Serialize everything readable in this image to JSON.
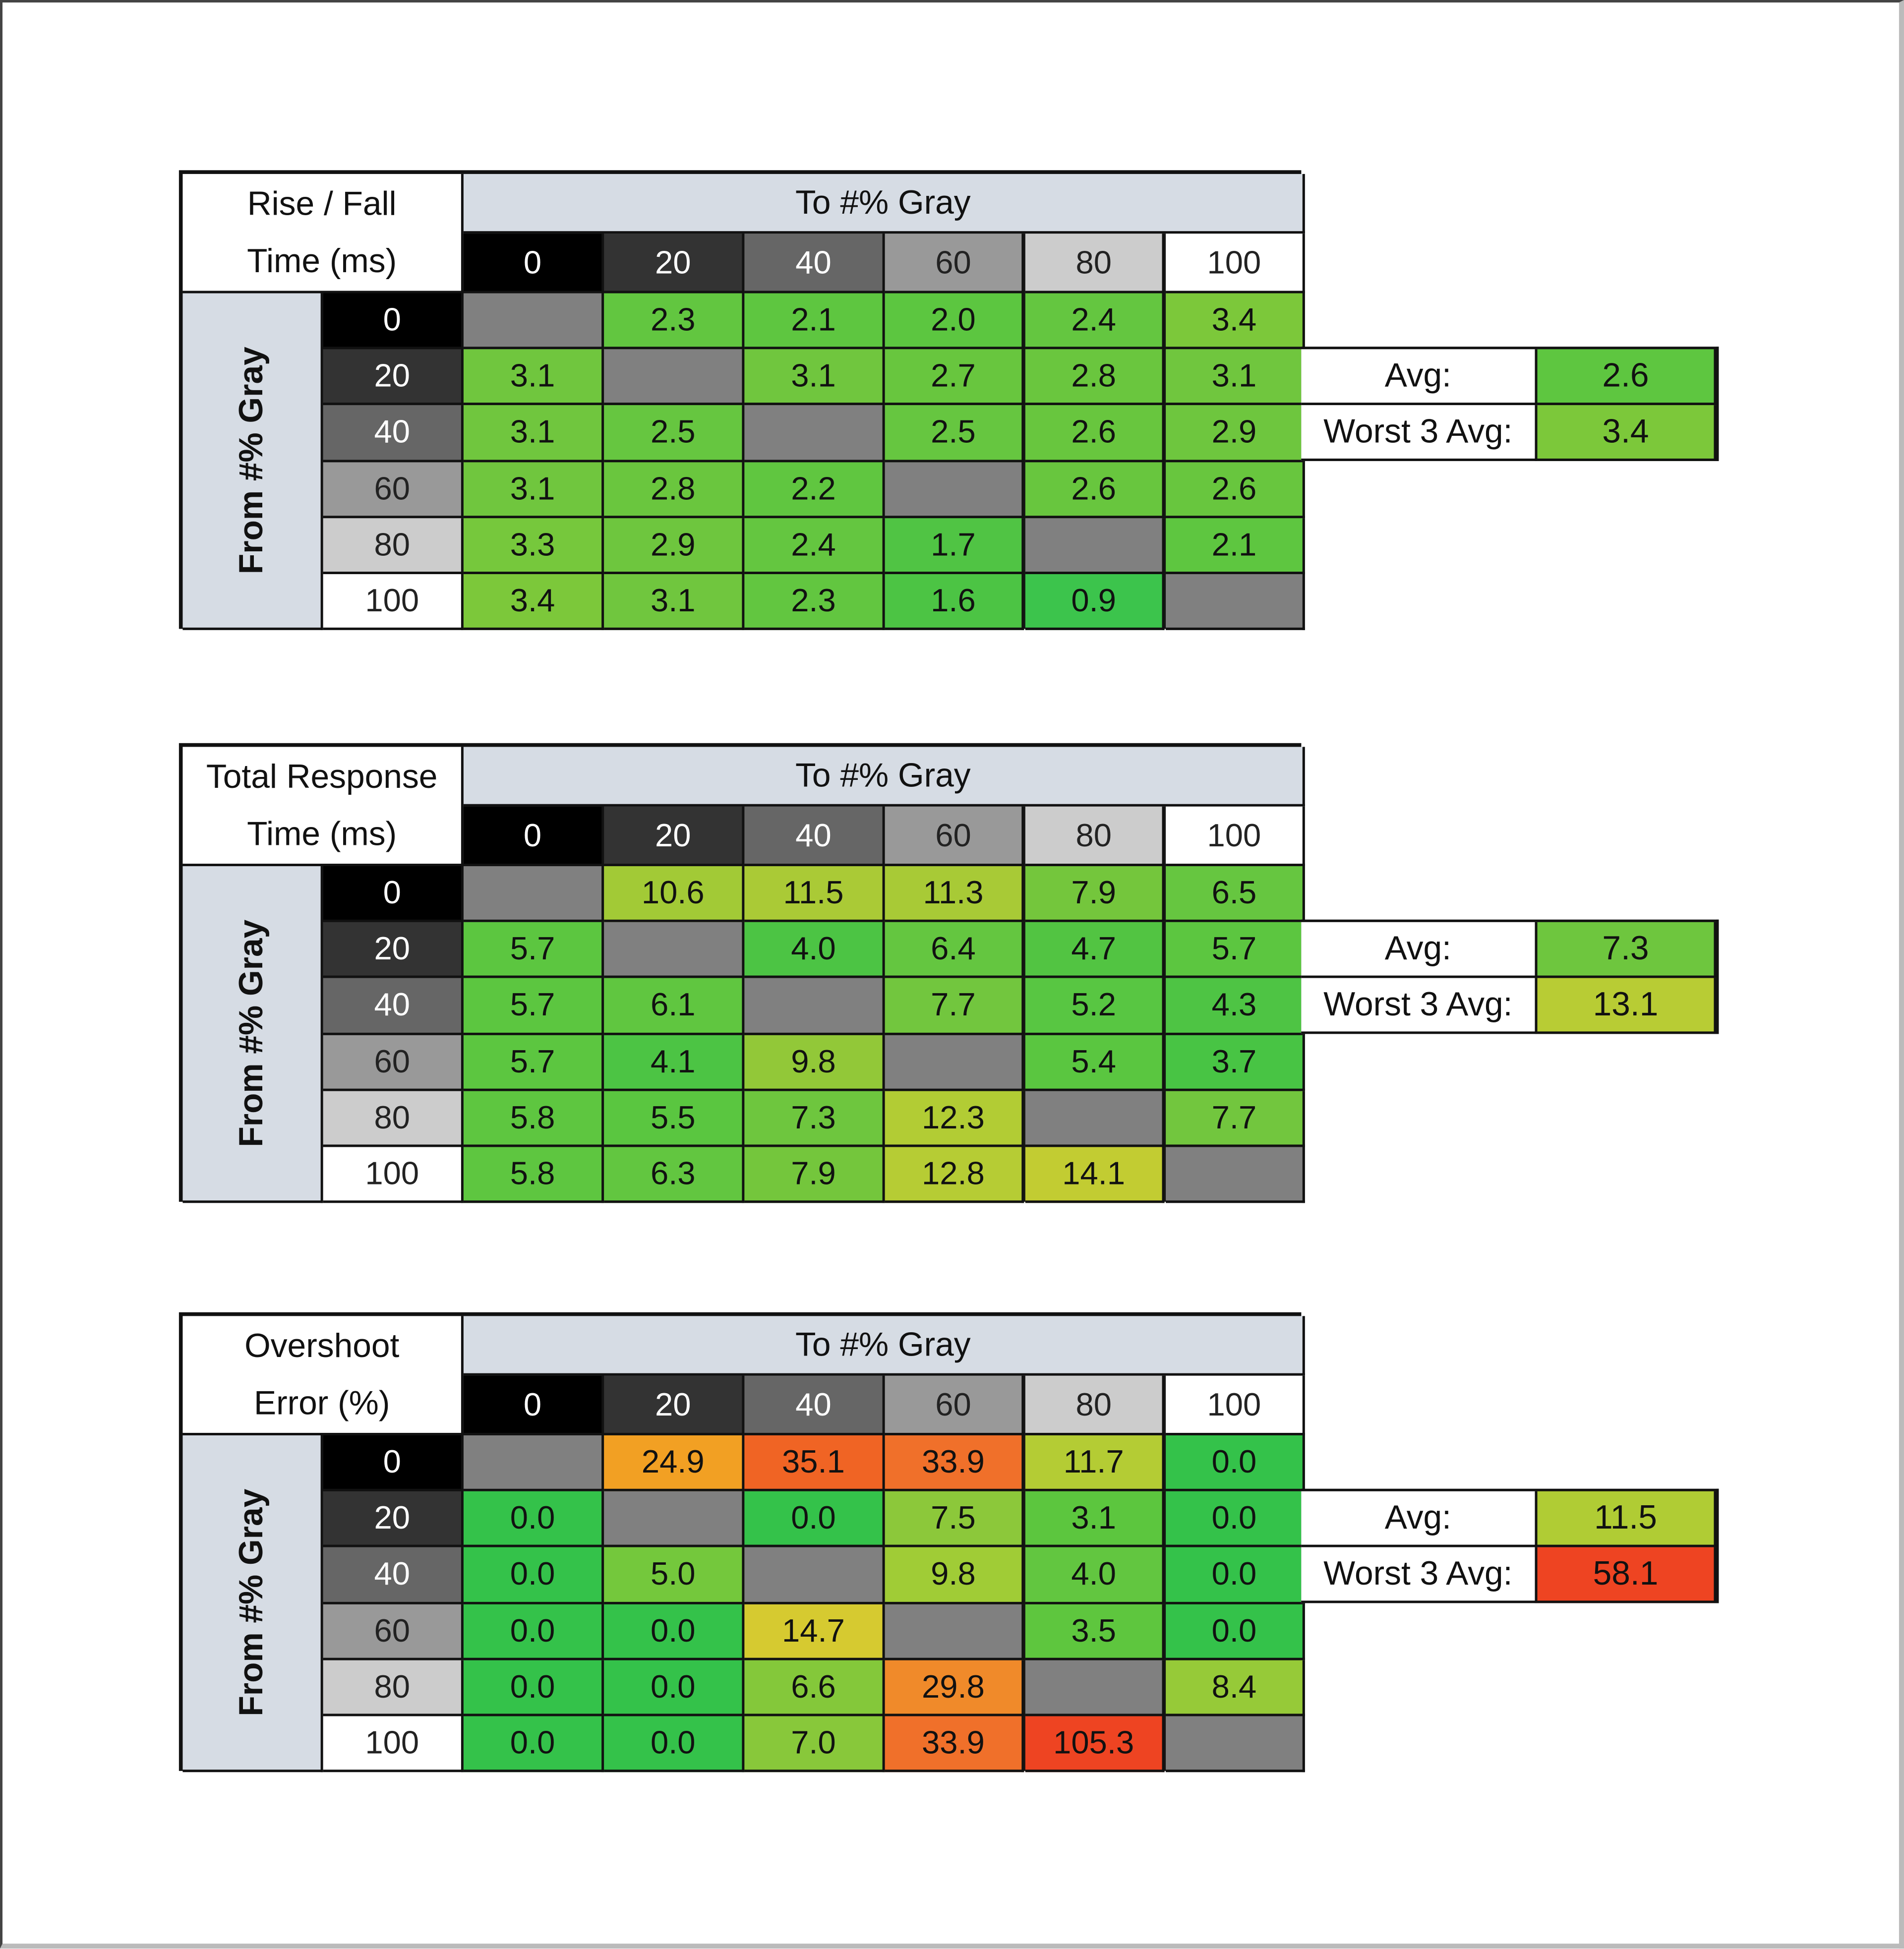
{
  "gray_levels": [
    "0",
    "20",
    "40",
    "60",
    "80",
    "100"
  ],
  "level_colors": {
    "bg": [
      "#000000",
      "#333333",
      "#666666",
      "#999999",
      "#cccccc",
      "#ffffff"
    ],
    "fg": [
      "#ffffff",
      "#ffffff",
      "#ffffff",
      "#222222",
      "#222222",
      "#222222"
    ]
  },
  "empty_color": "#808080",
  "header_band_color": "#d6dce4",
  "to_label": "To #% Gray",
  "from_label": "From #% Gray",
  "avg_label": "Avg:",
  "worst_label": "Worst 3 Avg:",
  "chart_data": [
    {
      "type": "table",
      "title": [
        "Rise / Fall",
        "Time (ms)"
      ],
      "rows": [
        [
          null,
          "2.3",
          "2.1",
          "2.0",
          "2.4",
          "3.4"
        ],
        [
          "3.1",
          null,
          "3.1",
          "2.7",
          "2.8",
          "3.1"
        ],
        [
          "3.1",
          "2.5",
          null,
          "2.5",
          "2.6",
          "2.9"
        ],
        [
          "3.1",
          "2.8",
          "2.2",
          null,
          "2.6",
          "2.6"
        ],
        [
          "3.3",
          "2.9",
          "2.4",
          "1.7",
          null,
          "2.1"
        ],
        [
          "3.4",
          "3.1",
          "2.3",
          "1.6",
          "0.9",
          null
        ]
      ],
      "colors": [
        [
          null,
          "#62c640",
          "#5ec640",
          "#5cc640",
          "#64c640",
          "#7cc83a"
        ],
        [
          "#70c63e",
          null,
          "#70c63e",
          "#68c63e",
          "#6ac63e",
          "#70c63e"
        ],
        [
          "#70c63e",
          "#66c640",
          null,
          "#66c640",
          "#68c63e",
          "#6ec63e"
        ],
        [
          "#70c63e",
          "#6ac63e",
          "#60c640",
          null,
          "#68c63e",
          "#68c63e"
        ],
        [
          "#76c83c",
          "#6ec63e",
          "#64c640",
          "#50c444",
          null,
          "#5ec640"
        ],
        [
          "#7cc83a",
          "#70c63e",
          "#62c640",
          "#4cc444",
          "#3cc44c",
          null
        ]
      ],
      "avg": "2.6",
      "avg_color": "#5ec640",
      "worst3_avg": "3.4",
      "worst3_color": "#7cc83a"
    },
    {
      "type": "table",
      "title": [
        "Total Response",
        "Time (ms)"
      ],
      "rows": [
        [
          null,
          "10.6",
          "11.5",
          "11.3",
          "7.9",
          "6.5"
        ],
        [
          "5.7",
          null,
          "4.0",
          "6.4",
          "4.7",
          "5.7"
        ],
        [
          "5.7",
          "6.1",
          null,
          "7.7",
          "5.2",
          "4.3"
        ],
        [
          "5.7",
          "4.1",
          "9.8",
          null,
          "5.4",
          "3.7"
        ],
        [
          "5.8",
          "5.5",
          "7.3",
          "12.3",
          null,
          "7.7"
        ],
        [
          "5.8",
          "6.3",
          "7.9",
          "12.8",
          "14.1",
          null
        ]
      ],
      "colors": [
        [
          null,
          "#a2ca36",
          "#aaca36",
          "#a8ca36",
          "#74c63c",
          "#66c640"
        ],
        [
          "#5cc640",
          null,
          "#4cc444",
          "#64c640",
          "#52c442",
          "#5cc640"
        ],
        [
          "#5cc640",
          "#60c640",
          null,
          "#72c63e",
          "#58c642",
          "#4ec444"
        ],
        [
          "#5cc640",
          "#4cc444",
          "#92c838",
          null,
          "#5ac640",
          "#48c444"
        ],
        [
          "#5ec640",
          "#5ac640",
          "#6ec63e",
          "#b2cc34",
          null,
          "#72c63e"
        ],
        [
          "#5ec640",
          "#62c640",
          "#74c63c",
          "#b6cc34",
          "#c2cc32",
          null
        ]
      ],
      "avg": "7.3",
      "avg_color": "#6ec63e",
      "worst3_avg": "13.1",
      "worst3_color": "#b8cc34"
    },
    {
      "type": "table",
      "title": [
        "Overshoot",
        "Error (%)"
      ],
      "rows": [
        [
          null,
          "24.9",
          "35.1",
          "33.9",
          "11.7",
          "0.0"
        ],
        [
          "0.0",
          null,
          "0.0",
          "7.5",
          "3.1",
          "0.0"
        ],
        [
          "0.0",
          "5.0",
          null,
          "9.8",
          "4.0",
          "0.0"
        ],
        [
          "0.0",
          "0.0",
          "14.7",
          null,
          "3.5",
          "0.0"
        ],
        [
          "0.0",
          "0.0",
          "6.6",
          "29.8",
          null,
          "8.4"
        ],
        [
          "0.0",
          "0.0",
          "7.0",
          "33.9",
          "105.3",
          null
        ]
      ],
      "colors": [
        [
          null,
          "#f2a023",
          "#f06424",
          "#f0702a",
          "#b4cc34",
          "#34c24a"
        ],
        [
          "#34c24a",
          null,
          "#34c24a",
          "#8cc83a",
          "#5cc63e",
          "#34c24a"
        ],
        [
          "#34c24a",
          "#74c83c",
          null,
          "#a0cc36",
          "#62c640",
          "#34c24a"
        ],
        [
          "#34c24a",
          "#34c24a",
          "#d6ca30",
          null,
          "#5ec63e",
          "#34c24a"
        ],
        [
          "#34c24a",
          "#34c24a",
          "#84c83a",
          "#f08a2a",
          null,
          "#96ca38"
        ],
        [
          "#34c24a",
          "#34c24a",
          "#88c83a",
          "#f0702a",
          "#ee4422",
          null
        ]
      ],
      "avg": "11.5",
      "avg_color": "#b0cc34",
      "worst3_avg": "58.1",
      "worst3_color": "#ee4422"
    }
  ]
}
